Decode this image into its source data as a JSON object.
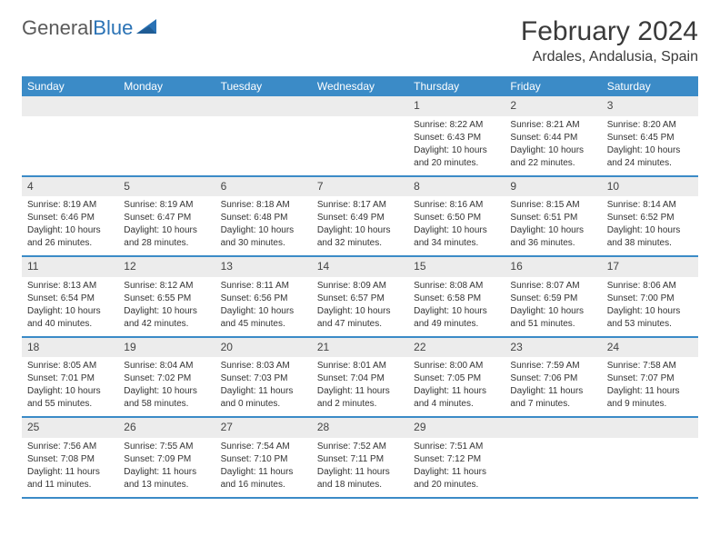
{
  "logo": {
    "text1": "General",
    "text2": "Blue"
  },
  "title": "February 2024",
  "location": "Ardales, Andalusia, Spain",
  "headers": [
    "Sunday",
    "Monday",
    "Tuesday",
    "Wednesday",
    "Thursday",
    "Friday",
    "Saturday"
  ],
  "colors": {
    "header_bg": "#3b8bc7",
    "header_text": "#ffffff",
    "daynum_bg": "#ececec",
    "border": "#3b8bc7",
    "logo_gray": "#5a5a5a",
    "logo_blue": "#2a72b5"
  },
  "weeks": [
    [
      {
        "day": "",
        "sunrise": "",
        "sunset": "",
        "daylight1": "",
        "daylight2": ""
      },
      {
        "day": "",
        "sunrise": "",
        "sunset": "",
        "daylight1": "",
        "daylight2": ""
      },
      {
        "day": "",
        "sunrise": "",
        "sunset": "",
        "daylight1": "",
        "daylight2": ""
      },
      {
        "day": "",
        "sunrise": "",
        "sunset": "",
        "daylight1": "",
        "daylight2": ""
      },
      {
        "day": "1",
        "sunrise": "Sunrise: 8:22 AM",
        "sunset": "Sunset: 6:43 PM",
        "daylight1": "Daylight: 10 hours",
        "daylight2": "and 20 minutes."
      },
      {
        "day": "2",
        "sunrise": "Sunrise: 8:21 AM",
        "sunset": "Sunset: 6:44 PM",
        "daylight1": "Daylight: 10 hours",
        "daylight2": "and 22 minutes."
      },
      {
        "day": "3",
        "sunrise": "Sunrise: 8:20 AM",
        "sunset": "Sunset: 6:45 PM",
        "daylight1": "Daylight: 10 hours",
        "daylight2": "and 24 minutes."
      }
    ],
    [
      {
        "day": "4",
        "sunrise": "Sunrise: 8:19 AM",
        "sunset": "Sunset: 6:46 PM",
        "daylight1": "Daylight: 10 hours",
        "daylight2": "and 26 minutes."
      },
      {
        "day": "5",
        "sunrise": "Sunrise: 8:19 AM",
        "sunset": "Sunset: 6:47 PM",
        "daylight1": "Daylight: 10 hours",
        "daylight2": "and 28 minutes."
      },
      {
        "day": "6",
        "sunrise": "Sunrise: 8:18 AM",
        "sunset": "Sunset: 6:48 PM",
        "daylight1": "Daylight: 10 hours",
        "daylight2": "and 30 minutes."
      },
      {
        "day": "7",
        "sunrise": "Sunrise: 8:17 AM",
        "sunset": "Sunset: 6:49 PM",
        "daylight1": "Daylight: 10 hours",
        "daylight2": "and 32 minutes."
      },
      {
        "day": "8",
        "sunrise": "Sunrise: 8:16 AM",
        "sunset": "Sunset: 6:50 PM",
        "daylight1": "Daylight: 10 hours",
        "daylight2": "and 34 minutes."
      },
      {
        "day": "9",
        "sunrise": "Sunrise: 8:15 AM",
        "sunset": "Sunset: 6:51 PM",
        "daylight1": "Daylight: 10 hours",
        "daylight2": "and 36 minutes."
      },
      {
        "day": "10",
        "sunrise": "Sunrise: 8:14 AM",
        "sunset": "Sunset: 6:52 PM",
        "daylight1": "Daylight: 10 hours",
        "daylight2": "and 38 minutes."
      }
    ],
    [
      {
        "day": "11",
        "sunrise": "Sunrise: 8:13 AM",
        "sunset": "Sunset: 6:54 PM",
        "daylight1": "Daylight: 10 hours",
        "daylight2": "and 40 minutes."
      },
      {
        "day": "12",
        "sunrise": "Sunrise: 8:12 AM",
        "sunset": "Sunset: 6:55 PM",
        "daylight1": "Daylight: 10 hours",
        "daylight2": "and 42 minutes."
      },
      {
        "day": "13",
        "sunrise": "Sunrise: 8:11 AM",
        "sunset": "Sunset: 6:56 PM",
        "daylight1": "Daylight: 10 hours",
        "daylight2": "and 45 minutes."
      },
      {
        "day": "14",
        "sunrise": "Sunrise: 8:09 AM",
        "sunset": "Sunset: 6:57 PM",
        "daylight1": "Daylight: 10 hours",
        "daylight2": "and 47 minutes."
      },
      {
        "day": "15",
        "sunrise": "Sunrise: 8:08 AM",
        "sunset": "Sunset: 6:58 PM",
        "daylight1": "Daylight: 10 hours",
        "daylight2": "and 49 minutes."
      },
      {
        "day": "16",
        "sunrise": "Sunrise: 8:07 AM",
        "sunset": "Sunset: 6:59 PM",
        "daylight1": "Daylight: 10 hours",
        "daylight2": "and 51 minutes."
      },
      {
        "day": "17",
        "sunrise": "Sunrise: 8:06 AM",
        "sunset": "Sunset: 7:00 PM",
        "daylight1": "Daylight: 10 hours",
        "daylight2": "and 53 minutes."
      }
    ],
    [
      {
        "day": "18",
        "sunrise": "Sunrise: 8:05 AM",
        "sunset": "Sunset: 7:01 PM",
        "daylight1": "Daylight: 10 hours",
        "daylight2": "and 55 minutes."
      },
      {
        "day": "19",
        "sunrise": "Sunrise: 8:04 AM",
        "sunset": "Sunset: 7:02 PM",
        "daylight1": "Daylight: 10 hours",
        "daylight2": "and 58 minutes."
      },
      {
        "day": "20",
        "sunrise": "Sunrise: 8:03 AM",
        "sunset": "Sunset: 7:03 PM",
        "daylight1": "Daylight: 11 hours",
        "daylight2": "and 0 minutes."
      },
      {
        "day": "21",
        "sunrise": "Sunrise: 8:01 AM",
        "sunset": "Sunset: 7:04 PM",
        "daylight1": "Daylight: 11 hours",
        "daylight2": "and 2 minutes."
      },
      {
        "day": "22",
        "sunrise": "Sunrise: 8:00 AM",
        "sunset": "Sunset: 7:05 PM",
        "daylight1": "Daylight: 11 hours",
        "daylight2": "and 4 minutes."
      },
      {
        "day": "23",
        "sunrise": "Sunrise: 7:59 AM",
        "sunset": "Sunset: 7:06 PM",
        "daylight1": "Daylight: 11 hours",
        "daylight2": "and 7 minutes."
      },
      {
        "day": "24",
        "sunrise": "Sunrise: 7:58 AM",
        "sunset": "Sunset: 7:07 PM",
        "daylight1": "Daylight: 11 hours",
        "daylight2": "and 9 minutes."
      }
    ],
    [
      {
        "day": "25",
        "sunrise": "Sunrise: 7:56 AM",
        "sunset": "Sunset: 7:08 PM",
        "daylight1": "Daylight: 11 hours",
        "daylight2": "and 11 minutes."
      },
      {
        "day": "26",
        "sunrise": "Sunrise: 7:55 AM",
        "sunset": "Sunset: 7:09 PM",
        "daylight1": "Daylight: 11 hours",
        "daylight2": "and 13 minutes."
      },
      {
        "day": "27",
        "sunrise": "Sunrise: 7:54 AM",
        "sunset": "Sunset: 7:10 PM",
        "daylight1": "Daylight: 11 hours",
        "daylight2": "and 16 minutes."
      },
      {
        "day": "28",
        "sunrise": "Sunrise: 7:52 AM",
        "sunset": "Sunset: 7:11 PM",
        "daylight1": "Daylight: 11 hours",
        "daylight2": "and 18 minutes."
      },
      {
        "day": "29",
        "sunrise": "Sunrise: 7:51 AM",
        "sunset": "Sunset: 7:12 PM",
        "daylight1": "Daylight: 11 hours",
        "daylight2": "and 20 minutes."
      },
      {
        "day": "",
        "sunrise": "",
        "sunset": "",
        "daylight1": "",
        "daylight2": ""
      },
      {
        "day": "",
        "sunrise": "",
        "sunset": "",
        "daylight1": "",
        "daylight2": ""
      }
    ]
  ]
}
